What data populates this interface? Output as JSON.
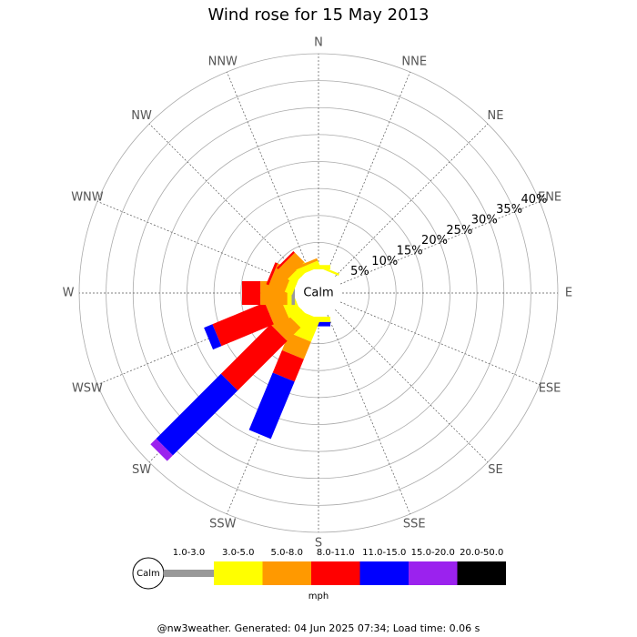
{
  "chart_data": {
    "type": "windrose",
    "title": "Wind rose for 15 May 2013",
    "directions": [
      "N",
      "NNE",
      "NE",
      "ENE",
      "E",
      "ESE",
      "SE",
      "SSE",
      "S",
      "SSW",
      "SW",
      "WSW",
      "W",
      "WNW",
      "NW",
      "NNW"
    ],
    "calm_label": "Calm",
    "legend_unit": "mph",
    "footer": "@nw3weather. Generated: 04 Jun 2025 07:34; Load time: 0.06 s",
    "rlim": [
      0,
      40
    ],
    "rticks": [
      {
        "value": 5,
        "label": "5%"
      },
      {
        "value": 10,
        "label": "10%"
      },
      {
        "value": 15,
        "label": "15%"
      },
      {
        "value": 20,
        "label": "20%"
      },
      {
        "value": 25,
        "label": "25%"
      },
      {
        "value": 30,
        "label": "30%"
      },
      {
        "value": 35,
        "label": "35%"
      },
      {
        "value": 40,
        "label": "40%"
      }
    ],
    "series": [
      {
        "name": "1.0-3.0",
        "color": "#999999",
        "values": [
          0,
          0,
          0,
          0,
          0,
          0,
          0,
          0,
          0,
          0,
          0,
          0,
          0.6,
          0,
          0,
          0
        ]
      },
      {
        "name": "3.0-5.0",
        "color": "#ffff00",
        "values": [
          0.8,
          0.4,
          0,
          0,
          0,
          0,
          0,
          0,
          1,
          4.5,
          2.5,
          2.5,
          0.8,
          1.5,
          1.5,
          1.2
        ]
      },
      {
        "name": "5.0-8.0",
        "color": "#ff9900",
        "values": [
          0,
          0,
          0,
          0,
          0,
          0,
          0,
          0,
          0,
          3.5,
          3.5,
          3,
          5,
          3.2,
          2.5,
          0.5
        ]
      },
      {
        "name": "8.0-11.0",
        "color": "#ff0000",
        "values": [
          0,
          0,
          0,
          0,
          0,
          0,
          0,
          0,
          0,
          4.5,
          13,
          10.5,
          3.4,
          0.5,
          0.4,
          0
        ]
      },
      {
        "name": "11.0-15.0",
        "color": "#0000ff",
        "values": [
          0,
          0,
          0,
          0,
          0,
          0,
          0,
          0,
          0.8,
          11.5,
          17,
          1.7,
          0,
          0,
          0,
          0
        ]
      },
      {
        "name": "15.0-20.0",
        "color": "#9b22ee",
        "values": [
          0,
          0,
          0,
          0,
          0,
          0,
          0,
          0,
          0,
          0,
          1.5,
          0,
          0,
          0,
          0,
          0
        ]
      },
      {
        "name": "20.0-50.0",
        "color": "#000000",
        "values": [
          0,
          0,
          0,
          0,
          0,
          0,
          0,
          0,
          0,
          0,
          0,
          0,
          0,
          0,
          0,
          0
        ]
      }
    ]
  }
}
